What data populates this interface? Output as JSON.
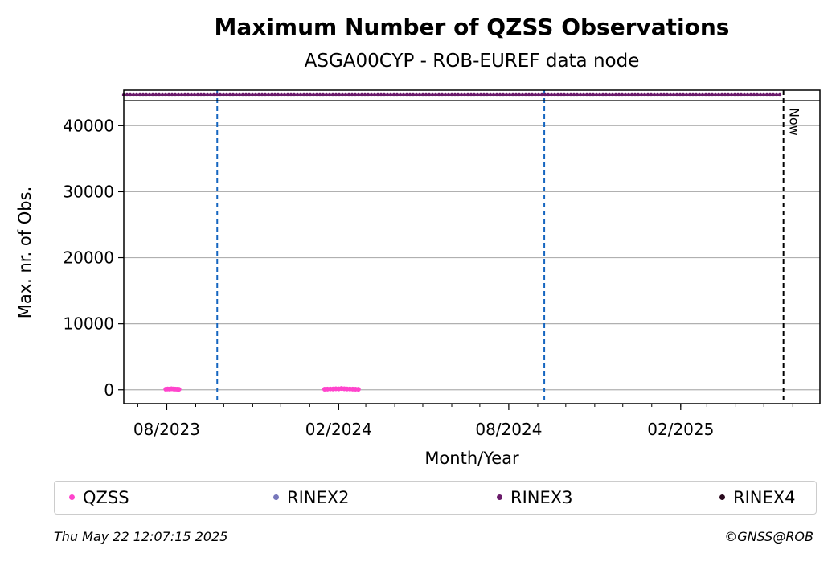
{
  "chart_data": {
    "type": "scatter",
    "title": "Maximum Number of QZSS Observations",
    "subtitle": "ASGA00CYP - ROB-EUREF data node",
    "xlabel": "Month/Year",
    "ylabel": "Max. nr. of Obs.",
    "x_range": [
      "2023-06-16",
      "2025-06-30"
    ],
    "ylim": [
      -2100,
      45400
    ],
    "y_ticks": [
      0,
      10000,
      20000,
      30000,
      40000
    ],
    "y_tick_labels": [
      "0",
      "10000",
      "20000",
      "30000",
      "40000"
    ],
    "x_ticks": [
      "2023-08-01",
      "2024-02-01",
      "2024-08-01",
      "2025-02-01"
    ],
    "x_tick_labels": [
      "08/2023",
      "02/2024",
      "08/2024",
      "02/2025"
    ],
    "grid": "horizontal",
    "vlines": [
      {
        "date": "2023-09-24",
        "color": "#1565c0",
        "style": "dashed"
      },
      {
        "date": "2024-09-08",
        "color": "#1565c0",
        "style": "dashed"
      },
      {
        "date": "2025-05-22",
        "color": "#000000",
        "style": "dashed",
        "label": "Now"
      }
    ],
    "top_band": {
      "series": "RINEX3",
      "start": "2023-06-16",
      "end": "2025-05-18",
      "color": "#6a1b6a"
    },
    "series": [
      {
        "name": "QZSS",
        "color": "#ff44cc",
        "points": [
          {
            "x": "2023-07-31",
            "y": 90
          },
          {
            "x": "2023-08-02",
            "y": 120
          },
          {
            "x": "2023-08-04",
            "y": 110
          },
          {
            "x": "2023-08-06",
            "y": 150
          },
          {
            "x": "2023-08-08",
            "y": 130
          },
          {
            "x": "2023-08-10",
            "y": 100
          },
          {
            "x": "2023-08-12",
            "y": 90
          },
          {
            "x": "2023-08-14",
            "y": 80
          },
          {
            "x": "2024-01-17",
            "y": 90
          },
          {
            "x": "2024-01-20",
            "y": 110
          },
          {
            "x": "2024-01-23",
            "y": 130
          },
          {
            "x": "2024-01-26",
            "y": 120
          },
          {
            "x": "2024-01-29",
            "y": 150
          },
          {
            "x": "2024-02-01",
            "y": 140
          },
          {
            "x": "2024-02-04",
            "y": 200
          },
          {
            "x": "2024-02-07",
            "y": 160
          },
          {
            "x": "2024-02-10",
            "y": 130
          },
          {
            "x": "2024-02-13",
            "y": 120
          },
          {
            "x": "2024-02-16",
            "y": 110
          },
          {
            "x": "2024-02-19",
            "y": 90
          },
          {
            "x": "2024-02-22",
            "y": 70
          }
        ]
      },
      {
        "name": "RINEX2",
        "color": "#7777bb",
        "points": []
      },
      {
        "name": "RINEX3",
        "color": "#6a1b6a",
        "points": []
      },
      {
        "name": "RINEX4",
        "color": "#2a0a1e",
        "points": []
      }
    ]
  },
  "legend": [
    {
      "label": "QZSS",
      "color": "#ff44cc"
    },
    {
      "label": "RINEX2",
      "color": "#7777bb"
    },
    {
      "label": "RINEX3",
      "color": "#6a1b6a"
    },
    {
      "label": "RINEX4",
      "color": "#2a0a1e"
    }
  ],
  "footer": {
    "timestamp": "Thu May 22 12:07:15 2025",
    "credit": "©GNSS@ROB"
  }
}
